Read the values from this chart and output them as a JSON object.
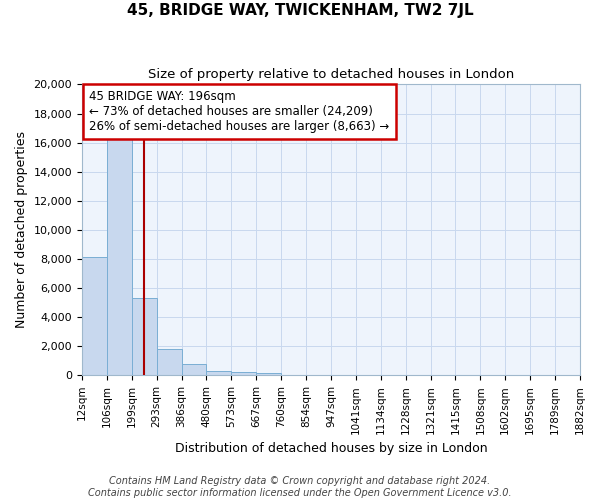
{
  "title": "45, BRIDGE WAY, TWICKENHAM, TW2 7JL",
  "subtitle": "Size of property relative to detached houses in London",
  "xlabel": "Distribution of detached houses by size in London",
  "ylabel": "Number of detached properties",
  "bar_values": [
    8100,
    16600,
    5300,
    1800,
    750,
    300,
    200,
    180,
    0,
    0,
    0,
    0,
    0,
    0,
    0,
    0,
    0,
    0,
    0,
    0
  ],
  "bar_labels": [
    "12sqm",
    "106sqm",
    "199sqm",
    "293sqm",
    "386sqm",
    "480sqm",
    "573sqm",
    "667sqm",
    "760sqm",
    "854sqm",
    "947sqm",
    "1041sqm",
    "1134sqm",
    "1228sqm",
    "1321sqm",
    "1415sqm",
    "1508sqm",
    "1602sqm",
    "1695sqm",
    "1789sqm"
  ],
  "extra_label": "1882sqm",
  "bar_color": "#c8d8ee",
  "bar_edgecolor": "#7aaed4",
  "property_line_color": "#aa0000",
  "annotation_text": "45 BRIDGE WAY: 196sqm\n← 73% of detached houses are smaller (24,209)\n26% of semi-detached houses are larger (8,663) →",
  "annotation_box_color": "#ffffff",
  "annotation_box_edgecolor": "#cc0000",
  "ylim": [
    0,
    20000
  ],
  "yticks": [
    0,
    2000,
    4000,
    6000,
    8000,
    10000,
    12000,
    14000,
    16000,
    18000,
    20000
  ],
  "grid_color": "#c8d8ee",
  "plot_bg_color": "#eef4fc",
  "fig_bg_color": "#ffffff",
  "footer_text": "Contains HM Land Registry data © Crown copyright and database right 2024.\nContains public sector information licensed under the Open Government Licence v3.0.",
  "property_line_x": 2.0
}
